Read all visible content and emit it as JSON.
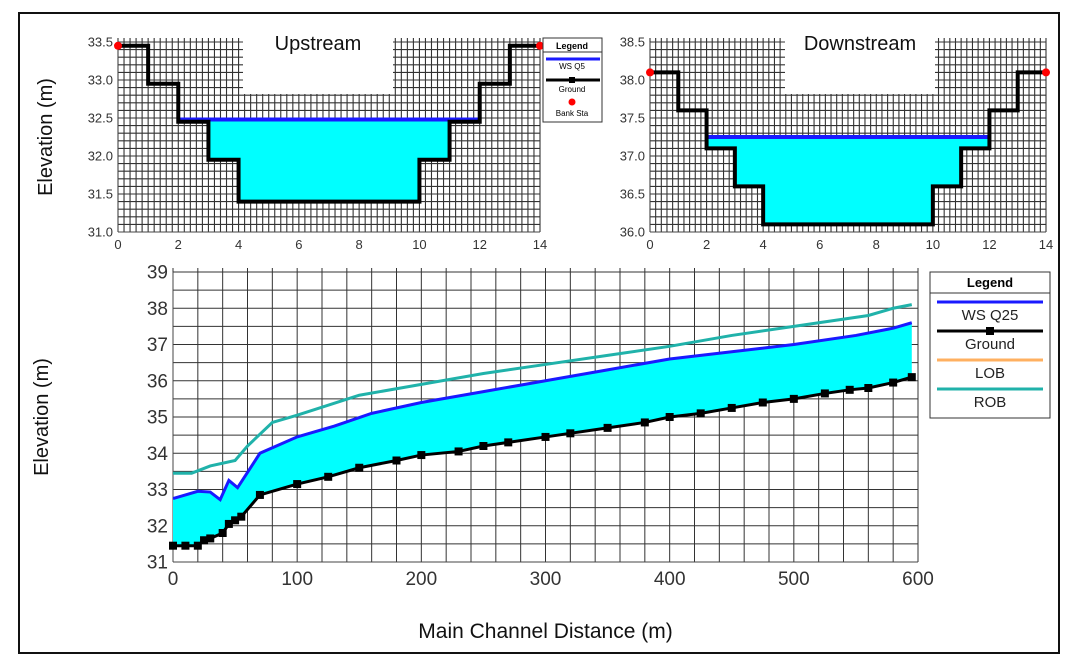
{
  "chart_data": [
    {
      "type": "line",
      "title": "Upstream",
      "xlabel": "",
      "ylabel": "Elevation (m)",
      "xlim": [
        0,
        14
      ],
      "ylim": [
        31.0,
        33.5
      ],
      "xticks": [
        "0",
        "2",
        "4",
        "6",
        "8",
        "10",
        "12",
        "14"
      ],
      "yticks": [
        "31.0",
        "31.5",
        "32.0",
        "32.5",
        "33.0",
        "33.5"
      ],
      "legend": {
        "title": "Legend",
        "entries": [
          "WS Q5",
          "Ground",
          "Bank Sta"
        ],
        "placement": "right"
      },
      "series": [
        {
          "name": "Ground",
          "x": [
            0,
            1,
            1,
            2,
            2,
            3,
            3,
            4,
            4,
            10,
            10,
            11,
            11,
            12,
            12,
            13,
            13,
            14
          ],
          "y": [
            33.45,
            33.45,
            32.95,
            32.95,
            32.45,
            32.45,
            31.95,
            31.95,
            31.4,
            31.4,
            31.95,
            31.95,
            32.45,
            32.45,
            32.95,
            32.95,
            33.45,
            33.45
          ]
        },
        {
          "name": "WS Q5",
          "x": [
            2,
            12
          ],
          "y": [
            32.48,
            32.48
          ]
        },
        {
          "name": "Bank Sta",
          "x": [
            0,
            14
          ],
          "y": [
            33.45,
            33.45
          ]
        }
      ]
    },
    {
      "type": "line",
      "title": "Downstream",
      "xlabel": "",
      "ylabel": "",
      "xlim": [
        0,
        14
      ],
      "ylim": [
        36.0,
        38.5
      ],
      "xticks": [
        "0",
        "2",
        "4",
        "6",
        "8",
        "10",
        "12",
        "14"
      ],
      "yticks": [
        "36.0",
        "36.5",
        "37.0",
        "37.5",
        "38.0",
        "38.5"
      ],
      "series": [
        {
          "name": "Ground",
          "x": [
            0,
            1,
            1,
            2,
            2,
            3,
            3,
            4,
            4,
            10,
            10,
            11,
            11,
            12,
            12,
            13,
            13,
            14
          ],
          "y": [
            38.1,
            38.1,
            37.6,
            37.6,
            37.1,
            37.1,
            36.6,
            36.6,
            36.1,
            36.1,
            36.6,
            36.6,
            37.1,
            37.1,
            37.6,
            37.6,
            38.1,
            38.1
          ]
        },
        {
          "name": "WS Q5",
          "x": [
            2,
            12
          ],
          "y": [
            37.25,
            37.25
          ]
        },
        {
          "name": "Bank Sta",
          "x": [
            0,
            14
          ],
          "y": [
            38.1,
            38.1
          ]
        }
      ]
    },
    {
      "type": "line",
      "title": "",
      "xlabel": "Main Channel Distance (m)",
      "ylabel": "Elevation (m)",
      "xlim": [
        0,
        600
      ],
      "ylim": [
        31,
        39
      ],
      "xticks": [
        "0",
        "100",
        "200",
        "300",
        "400",
        "500",
        "600"
      ],
      "yticks": [
        "31",
        "32",
        "33",
        "34",
        "35",
        "36",
        "37",
        "38",
        "39"
      ],
      "legend": {
        "title": "Legend",
        "entries": [
          "WS Q25",
          "Ground",
          "LOB",
          "ROB"
        ],
        "placement": "right"
      },
      "series": [
        {
          "name": "WS Q25",
          "x": [
            0,
            10,
            20,
            30,
            38,
            45,
            52,
            70,
            100,
            130,
            160,
            200,
            250,
            300,
            350,
            400,
            450,
            500,
            550,
            580,
            595
          ],
          "y": [
            32.75,
            32.85,
            32.95,
            32.93,
            32.72,
            33.25,
            33.05,
            34.0,
            34.45,
            34.75,
            35.1,
            35.4,
            35.7,
            36.0,
            36.3,
            36.6,
            36.8,
            37.0,
            37.25,
            37.45,
            37.6
          ]
        },
        {
          "name": "Ground",
          "x": [
            0,
            10,
            20,
            25,
            30,
            40,
            45,
            50,
            55,
            70,
            100,
            125,
            150,
            180,
            200,
            230,
            250,
            270,
            300,
            320,
            350,
            380,
            400,
            425,
            450,
            475,
            500,
            525,
            545,
            560,
            580,
            595
          ],
          "y": [
            31.45,
            31.45,
            31.45,
            31.6,
            31.65,
            31.8,
            32.05,
            32.15,
            32.25,
            32.85,
            33.15,
            33.35,
            33.6,
            33.8,
            33.95,
            34.05,
            34.2,
            34.3,
            34.45,
            34.55,
            34.7,
            34.85,
            35.0,
            35.1,
            35.25,
            35.4,
            35.5,
            35.65,
            35.75,
            35.8,
            35.95,
            36.1
          ]
        },
        {
          "name": "LOB",
          "x": [],
          "y": []
        },
        {
          "name": "ROB",
          "x": [
            0,
            15,
            30,
            50,
            60,
            80,
            100,
            150,
            200,
            250,
            300,
            350,
            400,
            450,
            500,
            560,
            580,
            595
          ],
          "y": [
            33.45,
            33.45,
            33.65,
            33.8,
            34.2,
            34.85,
            35.05,
            35.6,
            35.9,
            36.2,
            36.45,
            36.7,
            36.95,
            37.25,
            37.5,
            37.8,
            38.0,
            38.1
          ]
        }
      ]
    }
  ],
  "colors": {
    "ws": "#1a1aff",
    "ground": "#000000",
    "lob": "#ffb060",
    "rob": "#20b2aa",
    "water": "#00ffff",
    "bank": "#ff0000"
  }
}
